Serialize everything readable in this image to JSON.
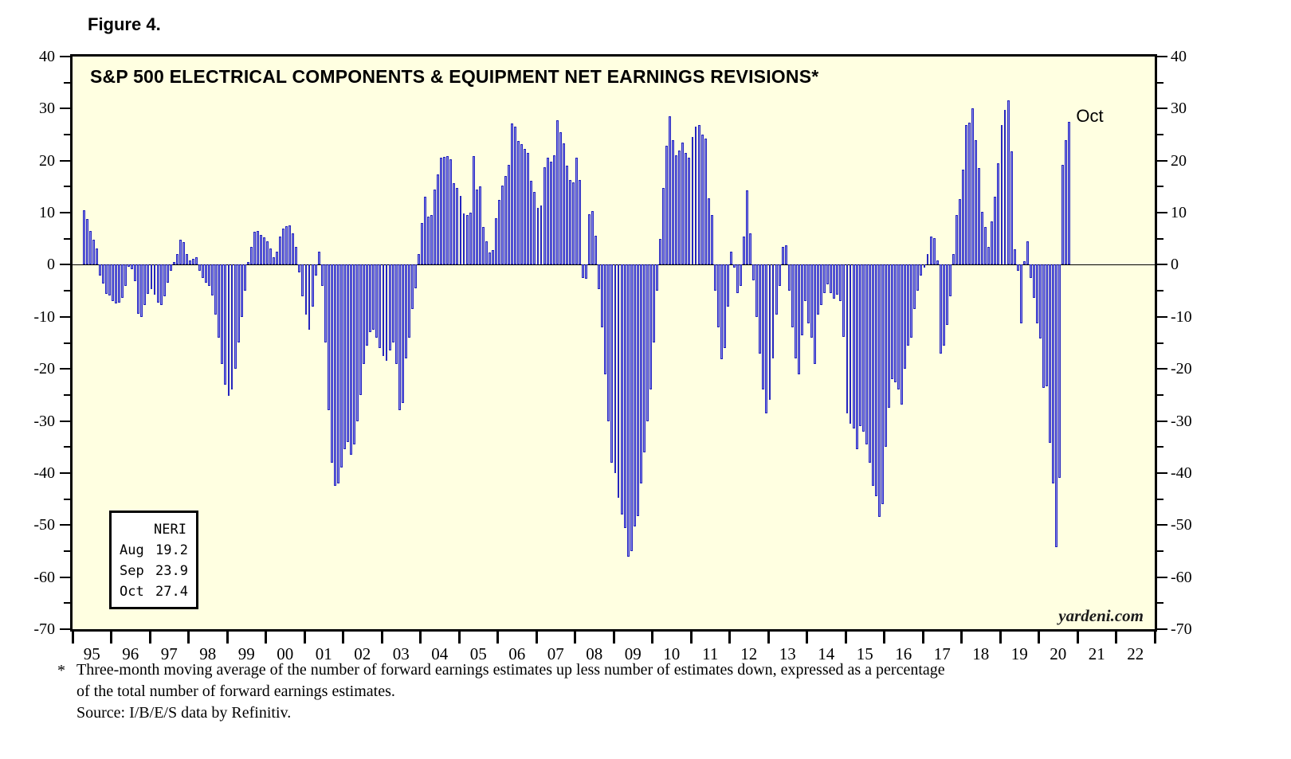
{
  "figure_label": "Figure 4.",
  "chart_data": {
    "type": "bar",
    "title": "S&P 500 ELECTRICAL COMPONENTS & EQUIPMENT NET EARNINGS REVISIONS*",
    "xlabel": "",
    "ylabel": "",
    "ylim": [
      -70,
      40
    ],
    "y_major_step": 10,
    "y_minor_step": 5,
    "grid": "off",
    "legend_position": "bottom-left",
    "plot_bg_color": "#FFFFE1",
    "bar_fill_color": "#8C8CEE",
    "bar_border_color": "#2525BE",
    "annotation_last_bar": "Oct",
    "watermark": "yardeni.com",
    "x_tick_labels": [
      "95",
      "96",
      "97",
      "98",
      "99",
      "00",
      "01",
      "02",
      "03",
      "04",
      "05",
      "06",
      "07",
      "08",
      "09",
      "10",
      "11",
      "12",
      "13",
      "14",
      "15",
      "16",
      "17",
      "18",
      "19",
      "20",
      "21",
      "22"
    ],
    "series": [
      {
        "name": "NERI (3-month moving average, %)",
        "start": "1995-04",
        "start_month_index": 3,
        "values": [
          10.4,
          8.8,
          6.5,
          4.8,
          3.2,
          -2.1,
          -3.6,
          -5.6,
          -5.9,
          -6.9,
          -7.4,
          -7.2,
          -6.4,
          -4.1,
          -0.4,
          -0.8,
          -3.1,
          -9.4,
          -10.0,
          -7.7,
          -5.6,
          -4.6,
          -5.8,
          -7.2,
          -7.7,
          -6.1,
          -3.4,
          -1.1,
          0.5,
          2.0,
          4.8,
          4.3,
          2.0,
          0.9,
          1.2,
          1.4,
          -1.1,
          -2.6,
          -3.4,
          -4.1,
          -5.9,
          -9.5,
          -14.0,
          -19.0,
          -23.0,
          -25.1,
          -24.0,
          -20.0,
          -15.0,
          -10.0,
          -5.0,
          0.5,
          3.5,
          6.3,
          6.5,
          5.8,
          5.2,
          4.5,
          3.2,
          1.5,
          2.5,
          5.5,
          6.9,
          7.4,
          7.5,
          6.0,
          3.5,
          -1.5,
          -6.0,
          -9.5,
          -12.5,
          -8.0,
          -2.0,
          2.5,
          -4.0,
          -15.0,
          -28.0,
          -38.0,
          -42.5,
          -42.0,
          -39.0,
          -35.5,
          -34.0,
          -36.5,
          -34.5,
          -30.0,
          -25.0,
          -19.0,
          -15.5,
          -13.0,
          -12.5,
          -14.0,
          -16.0,
          -17.5,
          -18.5,
          -16.5,
          -15.0,
          -19.0,
          -28.0,
          -26.5,
          -18.0,
          -14.0,
          -8.5,
          -4.5,
          2.0,
          8.0,
          13.0,
          9.3,
          9.5,
          14.5,
          17.3,
          20.5,
          20.7,
          20.8,
          20.3,
          15.6,
          14.7,
          13.2,
          9.8,
          9.5,
          10.0,
          20.8,
          14.5,
          15.1,
          7.2,
          4.5,
          2.4,
          2.8,
          9.0,
          12.5,
          15.2,
          17.0,
          19.2,
          27.2,
          26.6,
          23.8,
          23.2,
          22.3,
          21.5,
          16.2,
          14.0,
          10.9,
          11.4,
          18.7,
          20.5,
          19.8,
          21.0,
          27.7,
          25.4,
          23.3,
          19.0,
          16.3,
          15.8,
          20.5,
          16.3,
          -2.5,
          -2.7,
          9.7,
          10.3,
          5.6,
          -4.7,
          -12.0,
          -21.0,
          -30.0,
          -38.0,
          -40.0,
          -44.7,
          -48.0,
          -50.5,
          -56.1,
          -55.0,
          -50.3,
          -48.2,
          -42.0,
          -36.0,
          -30.0,
          -24.0,
          -15.0,
          -5.0,
          5.0,
          14.8,
          22.8,
          28.5,
          24.0,
          21.0,
          22.0,
          23.5,
          21.5,
          20.5,
          24.5,
          26.5,
          26.8,
          25.0,
          24.3,
          12.8,
          9.5,
          -5.0,
          -12.0,
          -18.1,
          -16.0,
          -8.0,
          2.5,
          -0.5,
          -5.5,
          -4.0,
          5.5,
          14.3,
          6.0,
          -3.0,
          -10.0,
          -17.0,
          -24.0,
          -28.5,
          -26.0,
          -18.0,
          -9.5,
          -4.0,
          3.5,
          3.8,
          -5.0,
          -12.0,
          -18.0,
          -21.0,
          -13.5,
          -7.0,
          -11.3,
          -14.0,
          -19.0,
          -9.5,
          -7.8,
          -5.5,
          -3.7,
          -5.5,
          -6.5,
          -5.8,
          -7.0,
          -13.8,
          -28.5,
          -30.5,
          -31.5,
          -35.5,
          -31.0,
          -32.0,
          -34.5,
          -38.0,
          -42.5,
          -44.5,
          -48.5,
          -46.0,
          -35.0,
          -27.5,
          -22.0,
          -22.5,
          -24.0,
          -26.8,
          -20.0,
          -15.5,
          -14.0,
          -8.5,
          -5.0,
          -2.0,
          -0.5,
          2.0,
          5.4,
          5.1,
          0.8,
          -17.0,
          -15.5,
          -11.5,
          -6.0,
          2.0,
          9.6,
          12.6,
          18.3,
          26.9,
          27.3,
          30.0,
          24.0,
          18.6,
          10.2,
          7.2,
          3.5,
          8.3,
          13.0,
          19.5,
          26.8,
          29.8,
          31.6,
          21.8,
          2.9,
          -1.1,
          -11.3,
          0.7,
          4.5,
          -2.5,
          -6.3,
          -11.3,
          -14.1,
          -23.6,
          -23.3,
          -34.2,
          -42.0,
          -54.3,
          -41.0,
          19.2,
          23.9,
          27.4
        ]
      }
    ]
  },
  "legend_box": {
    "header": "NERI",
    "rows": [
      {
        "label": "Aug",
        "value": "19.2"
      },
      {
        "label": "Sep",
        "value": "23.9"
      },
      {
        "label": "Oct",
        "value": "27.4"
      }
    ]
  },
  "footnote": {
    "marker": "*",
    "line1": "Three-month moving average of the number of forward earnings estimates up less number of estimates down, expressed as a percentage",
    "line2": "of the total number of forward earnings estimates.",
    "line3": "Source: I/B/E/S data by Refinitiv."
  }
}
